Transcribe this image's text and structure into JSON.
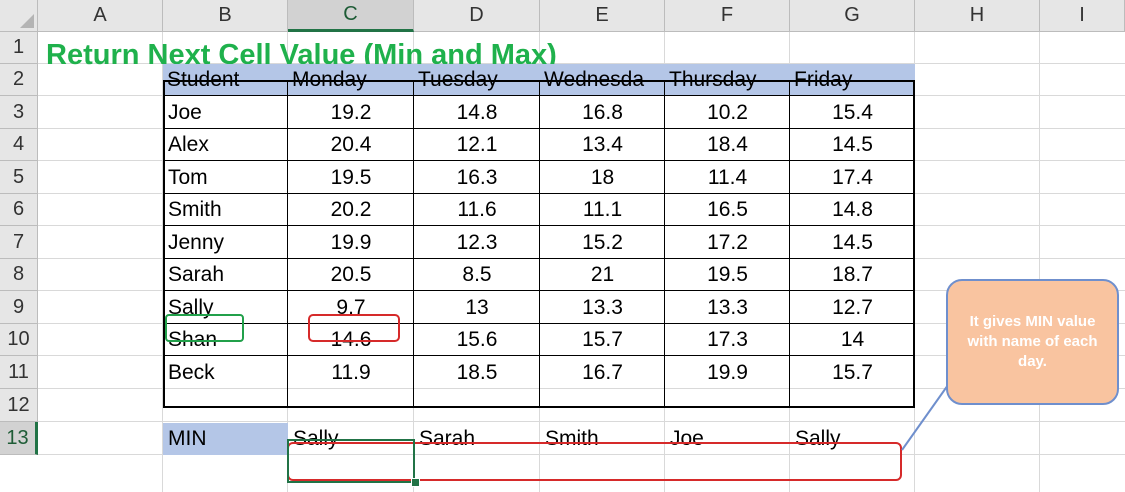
{
  "columns": [
    "A",
    "B",
    "C",
    "D",
    "E",
    "F",
    "G",
    "H",
    "I"
  ],
  "rows": [
    "1",
    "2",
    "3",
    "4",
    "5",
    "6",
    "7",
    "8",
    "9",
    "10",
    "11",
    "12",
    "13"
  ],
  "title": "Return Next Cell Value (Min and Max)",
  "table": {
    "headers": [
      "Student",
      "Monday",
      "Tuesday",
      "Wednesda",
      "Thursday",
      "Friday"
    ],
    "rows": [
      [
        "Joe",
        "19.2",
        "14.8",
        "16.8",
        "10.2",
        "15.4"
      ],
      [
        "Alex",
        "20.4",
        "12.1",
        "13.4",
        "18.4",
        "14.5"
      ],
      [
        "Tom",
        "19.5",
        "16.3",
        "18",
        "11.4",
        "17.4"
      ],
      [
        "Smith",
        "20.2",
        "11.6",
        "11.1",
        "16.5",
        "14.8"
      ],
      [
        "Jenny",
        "19.9",
        "12.3",
        "15.2",
        "17.2",
        "14.5"
      ],
      [
        "Sarah",
        "20.5",
        "8.5",
        "21",
        "19.5",
        "18.7"
      ],
      [
        "Sally",
        "9.7",
        "13",
        "13.3",
        "13.3",
        "12.7"
      ],
      [
        "Shan",
        "14.6",
        "15.6",
        "15.7",
        "17.3",
        "14"
      ],
      [
        "Beck",
        "11.9",
        "18.5",
        "16.7",
        "19.9",
        "15.7"
      ]
    ]
  },
  "min_row": {
    "label": "MIN",
    "values": [
      "Sally",
      "Sarah",
      "Smith",
      "Joe",
      "Sally"
    ]
  },
  "selection": {
    "active_column": "C",
    "active_row": "13"
  },
  "callout": {
    "text": "It gives MIN value with name of each day."
  },
  "colors": {
    "title": "#1fb14c",
    "header_fill": "#b4c6e7",
    "highlight_red": "#d62a2a",
    "highlight_green": "#21a04a",
    "callout_fill": "#f9c4a0",
    "callout_border": "#6f8fcd",
    "selection": "#217346"
  }
}
